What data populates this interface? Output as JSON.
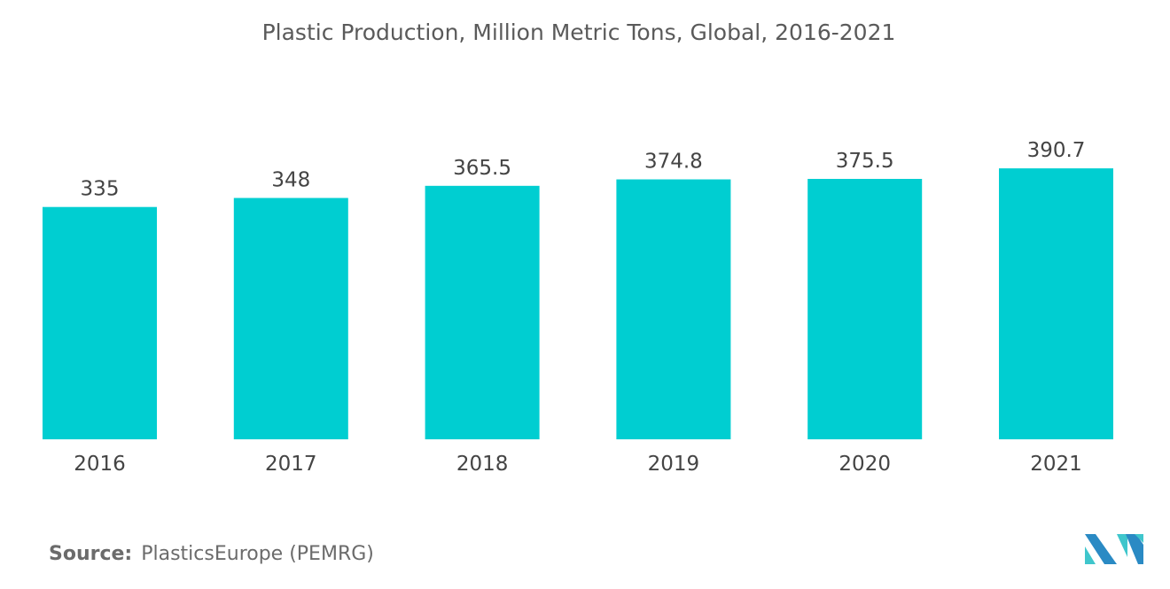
{
  "chart_data": {
    "type": "bar",
    "title": "Plastic Production, Million Metric Tons, Global, 2016-2021",
    "categories": [
      "2016",
      "2017",
      "2018",
      "2019",
      "2020",
      "2021"
    ],
    "values": [
      335,
      348,
      365.5,
      374.8,
      375.5,
      390.7
    ],
    "value_labels": [
      "335",
      "348",
      "365.5",
      "374.8",
      "375.5",
      "390.7"
    ],
    "xlabel": "",
    "ylabel": "",
    "ylim": [
      0,
      400
    ],
    "grid": false,
    "bar_color": "#00CED1"
  },
  "source": {
    "label": "Source:",
    "text": "PlasticsEurope (PEMRG)"
  },
  "logo": {
    "name": "mordor-intelligence-logo",
    "colors": [
      "#2a8ac4",
      "#3fc6cc"
    ]
  }
}
